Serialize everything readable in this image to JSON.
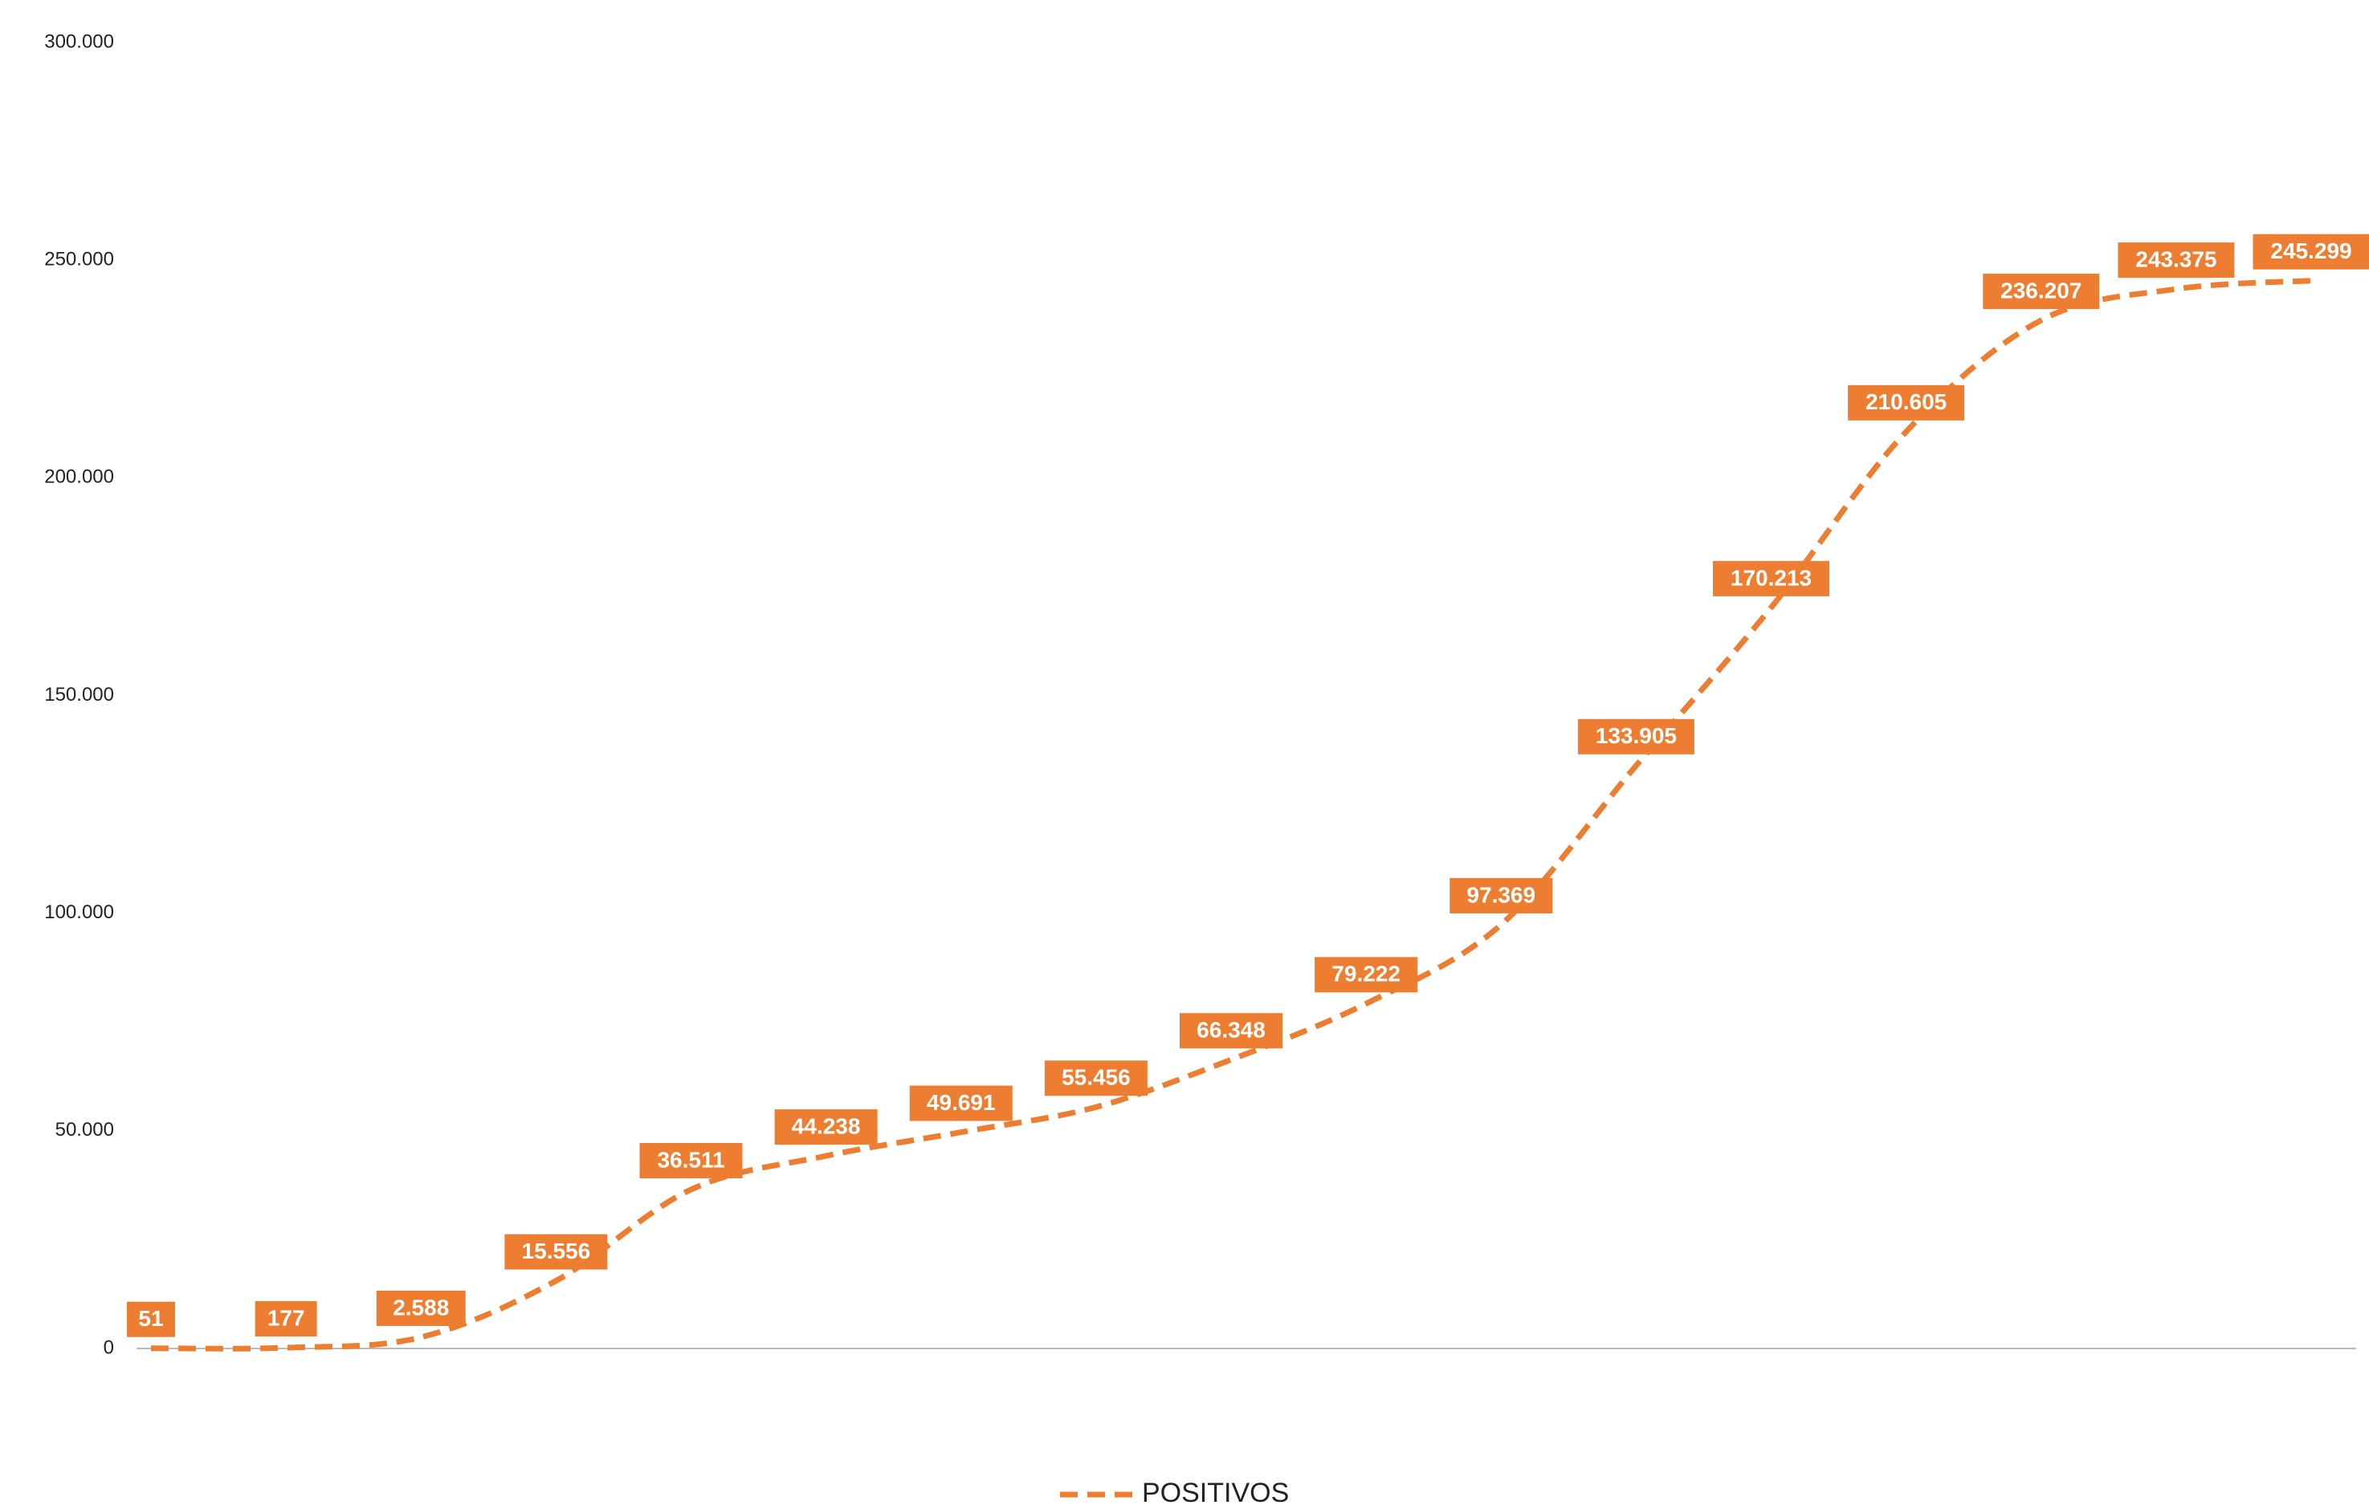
{
  "chart_data": {
    "type": "line",
    "categories": [
      null,
      null,
      null,
      null,
      null,
      null,
      null,
      null,
      null,
      null,
      null,
      null,
      null,
      null,
      null,
      null,
      null
    ],
    "series": [
      {
        "name": "POSITIVOS",
        "color": "#ed7d31",
        "values": [
          51,
          177,
          2588,
          15556,
          36511,
          44238,
          49691,
          55456,
          66348,
          79222,
          97369,
          133905,
          170213,
          210605,
          236207,
          243375,
          245299
        ],
        "value_labels": [
          "51",
          "177",
          "2.588",
          "15.556",
          "36.511",
          "44.238",
          "49.691",
          "55.456",
          "66.348",
          "79.222",
          "97.369",
          "133.905",
          "170.213",
          "210.605",
          "236.207",
          "243.375",
          "245.299"
        ]
      }
    ],
    "ylim": [
      0,
      300000
    ],
    "yticks": [
      0,
      {
        "value": 50000,
        "label": "50.000"
      },
      {
        "value": 100000,
        "label": "100.000"
      },
      {
        "value": 150000,
        "label": "150.000"
      },
      {
        "value": 200000,
        "label": "200.000"
      },
      {
        "value": 250000,
        "label": "250.000"
      },
      {
        "value": 300000,
        "label": "300.000"
      }
    ],
    "grid": false,
    "legend": "bottom"
  }
}
